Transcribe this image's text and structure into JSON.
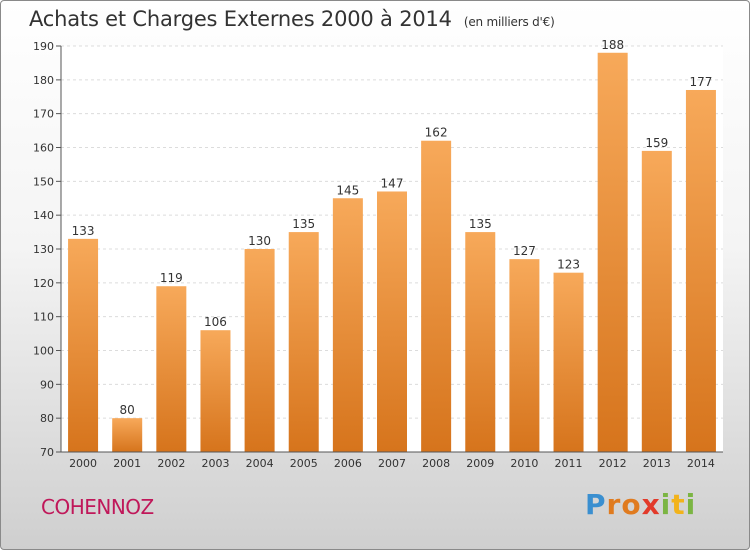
{
  "title": "Achats et Charges Externes 2000 à 2014",
  "unit": "(en milliers d'€)",
  "commune": "COHENNOZ",
  "logo": {
    "letters": [
      "P",
      "r",
      "o",
      "x",
      "i",
      "t",
      "i"
    ],
    "colors": [
      "#3a8fd0",
      "#e07b1f",
      "#e07b1f",
      "#e23a2a",
      "#7bb543",
      "#f2b31b",
      "#7bb543"
    ]
  },
  "chart_data": {
    "type": "bar",
    "title": "Achats et Charges Externes 2000 à 2014",
    "subtitle": "(en milliers d'€)",
    "categories": [
      "2000",
      "2001",
      "2002",
      "2003",
      "2004",
      "2005",
      "2006",
      "2007",
      "2008",
      "2009",
      "2010",
      "2011",
      "2012",
      "2013",
      "2014"
    ],
    "values": [
      133,
      80,
      119,
      106,
      130,
      135,
      145,
      147,
      162,
      135,
      127,
      123,
      188,
      159,
      177
    ],
    "ylim": [
      70,
      190
    ],
    "yticks": [
      70,
      80,
      90,
      100,
      110,
      120,
      130,
      140,
      150,
      160,
      170,
      180,
      190
    ],
    "grid": true,
    "bar_color_top": "#f7a95a",
    "bar_color_bottom": "#d6741c"
  }
}
